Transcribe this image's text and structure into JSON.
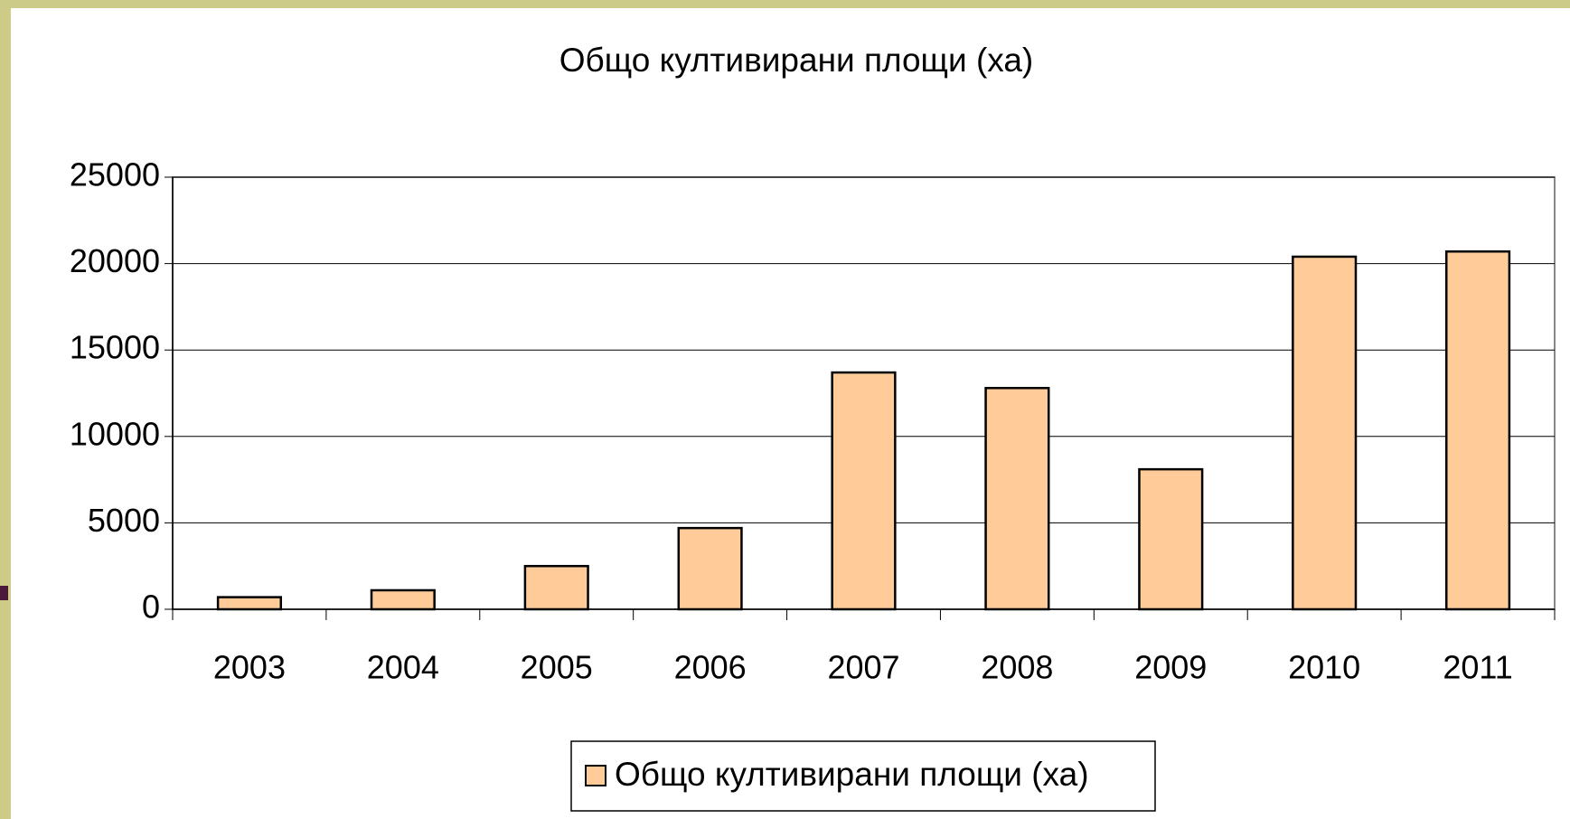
{
  "chart_data": {
    "type": "bar",
    "title": "Общо култивирани площи (ха)",
    "categories": [
      "2003",
      "2004",
      "2005",
      "2006",
      "2007",
      "2008",
      "2009",
      "2010",
      "2011"
    ],
    "series": [
      {
        "name": "Общо култивирани площи (ха)",
        "color": "#ffcc99",
        "values": [
          700,
          1100,
          2500,
          4700,
          13700,
          12800,
          8100,
          20400,
          20700
        ]
      }
    ],
    "ylim": [
      0,
      25000
    ],
    "yticks": [
      0,
      5000,
      10000,
      15000,
      20000,
      25000
    ],
    "grid": true,
    "legend": "bottom"
  }
}
